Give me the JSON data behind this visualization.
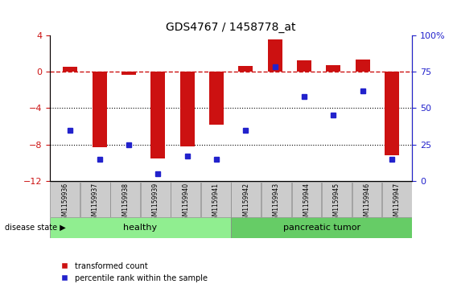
{
  "title": "GDS4767 / 1458778_at",
  "samples": [
    "GSM1159936",
    "GSM1159937",
    "GSM1159938",
    "GSM1159939",
    "GSM1159940",
    "GSM1159941",
    "GSM1159942",
    "GSM1159943",
    "GSM1159944",
    "GSM1159945",
    "GSM1159946",
    "GSM1159947"
  ],
  "red_values": [
    0.5,
    -8.3,
    -0.4,
    -9.5,
    -8.2,
    -5.8,
    0.6,
    3.5,
    1.2,
    0.7,
    1.3,
    -9.2
  ],
  "blue_values": [
    35,
    15,
    25,
    5,
    17,
    15,
    35,
    78,
    58,
    45,
    62,
    15
  ],
  "ylim_left": [
    -12,
    4
  ],
  "ylim_right": [
    0,
    100
  ],
  "yticks_left": [
    -12,
    -8,
    -4,
    0,
    4
  ],
  "yticks_right": [
    0,
    25,
    50,
    75,
    100
  ],
  "bar_color": "#CC1111",
  "dot_color": "#2222CC",
  "dashed_line_color": "#CC1111",
  "grid_color": "#000000",
  "sample_box_color": "#CCCCCC",
  "sample_box_edge": "#888888",
  "healthy_color": "#90EE90",
  "tumor_color": "#66CC66",
  "healthy_label": "healthy",
  "tumor_label": "pancreatic tumor",
  "disease_label": "disease state",
  "legend1": "transformed count",
  "legend2": "percentile rank within the sample",
  "healthy_count": 6,
  "tumor_count": 6,
  "bar_width": 0.5
}
